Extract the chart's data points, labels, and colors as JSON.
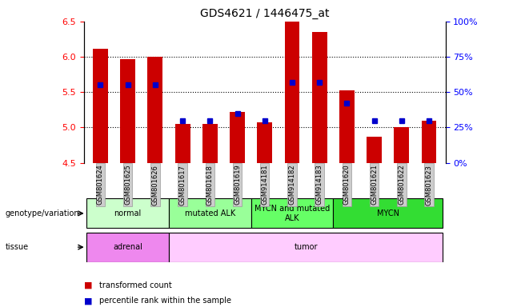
{
  "title": "GDS4621 / 1446475_at",
  "samples": [
    "GSM801624",
    "GSM801625",
    "GSM801626",
    "GSM801617",
    "GSM801618",
    "GSM801619",
    "GSM914181",
    "GSM914182",
    "GSM914183",
    "GSM801620",
    "GSM801621",
    "GSM801622",
    "GSM801623"
  ],
  "bar_values": [
    6.11,
    5.97,
    6.0,
    5.05,
    5.05,
    5.22,
    5.07,
    6.5,
    6.35,
    5.52,
    4.87,
    5.0,
    5.1
  ],
  "bar_base": 4.5,
  "percentile_values": [
    55,
    55,
    55,
    30,
    30,
    35,
    30,
    57,
    57,
    42,
    30,
    30,
    30
  ],
  "ylim_left": [
    4.5,
    6.5
  ],
  "ylim_right": [
    0,
    100
  ],
  "yticks_left": [
    4.5,
    5.0,
    5.5,
    6.0,
    6.5
  ],
  "yticks_right": [
    0,
    25,
    50,
    75,
    100
  ],
  "bar_color": "#cc0000",
  "dot_color": "#0000cc",
  "tick_bg": "#cccccc",
  "genotype_groups": [
    {
      "label": "normal",
      "start": 0,
      "end": 3,
      "color": "#ccffcc"
    },
    {
      "label": "mutated ALK",
      "start": 3,
      "end": 6,
      "color": "#99ff99"
    },
    {
      "label": "MYCN and mutated\nALK",
      "start": 6,
      "end": 9,
      "color": "#66ff66"
    },
    {
      "label": "MYCN",
      "start": 9,
      "end": 13,
      "color": "#33dd33"
    }
  ],
  "tissue_groups": [
    {
      "label": "adrenal",
      "start": 0,
      "end": 3,
      "color": "#ee88ee"
    },
    {
      "label": "tumor",
      "start": 3,
      "end": 13,
      "color": "#ffccff"
    }
  ],
  "legend_items": [
    {
      "label": "transformed count",
      "color": "#cc0000"
    },
    {
      "label": "percentile rank within the sample",
      "color": "#0000cc"
    }
  ],
  "left_label_geno": "genotype/variation",
  "left_label_tissue": "tissue"
}
